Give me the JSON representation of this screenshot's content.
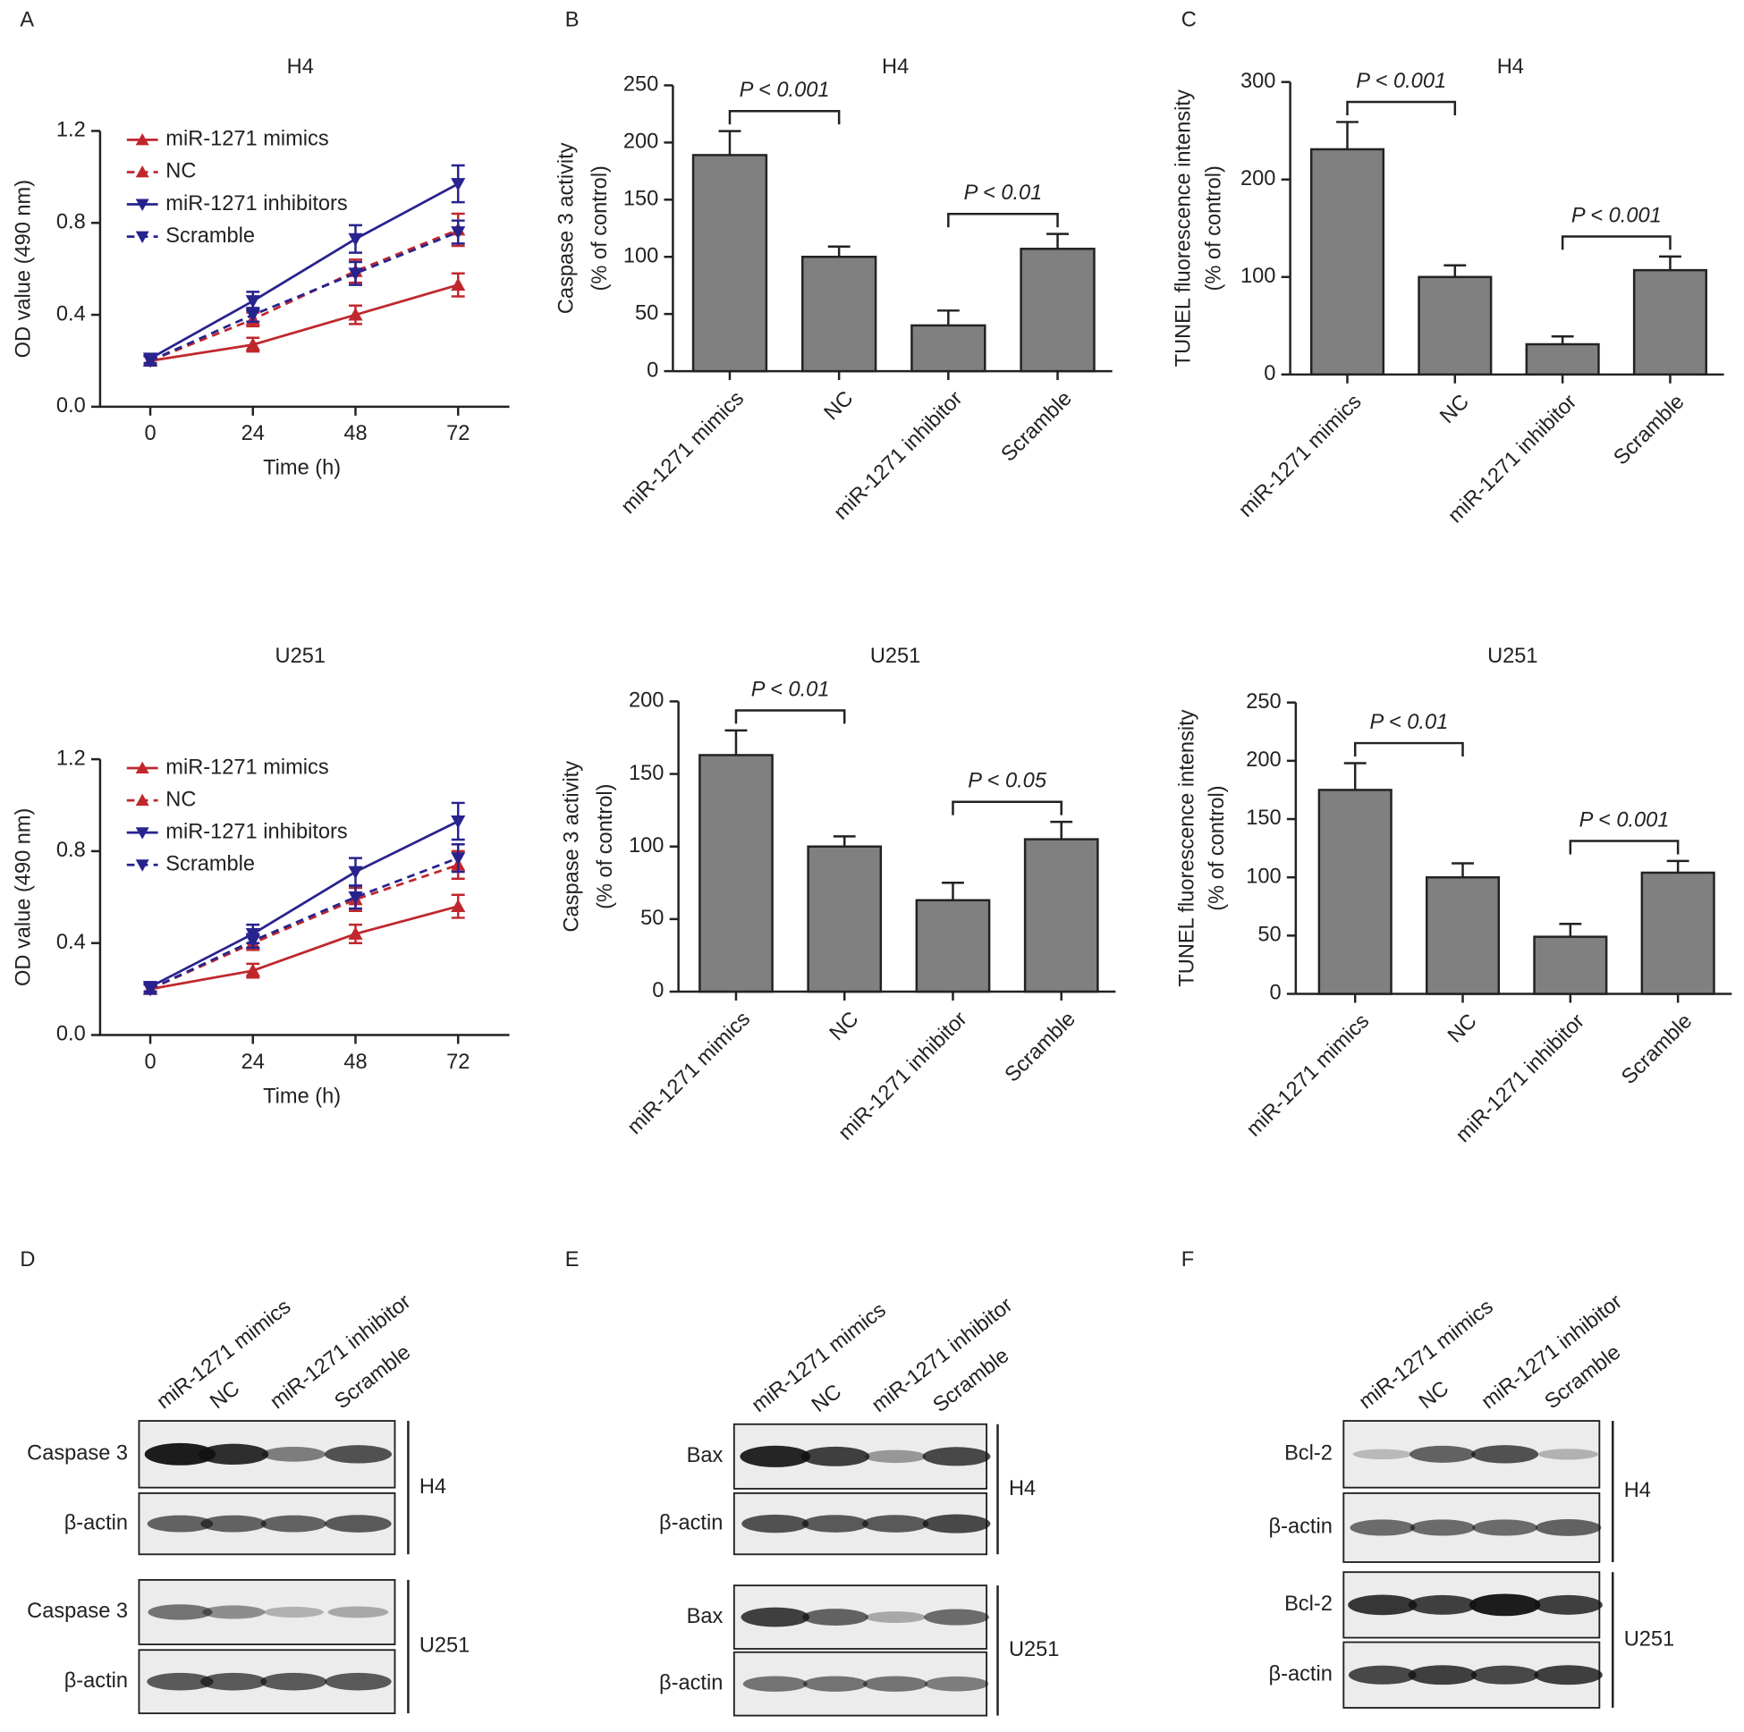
{
  "panel_labels": [
    "A",
    "B",
    "C",
    "D",
    "E",
    "F"
  ],
  "chart_data": [
    {
      "type": "line",
      "title": "H4",
      "xlabel": "Time (h)",
      "ylabel": [
        "OD value (490 nm)"
      ],
      "x": [
        0,
        24,
        48,
        72
      ],
      "xlim": [
        -12,
        84
      ],
      "xticks": [
        0,
        24,
        48,
        72
      ],
      "ylim": [
        0,
        1.2
      ],
      "yticks": [
        {
          "value": 0,
          "label": "0.0"
        },
        0.4,
        0.8,
        1.2
      ],
      "legend": "top-left",
      "series": [
        {
          "name": "miR-1271 mimics",
          "color": "#c0272d",
          "linestyle": "solid",
          "marker": "triangle-up",
          "values": [
            0.2,
            0.27,
            0.4,
            0.53
          ],
          "errors": [
            0.02,
            0.03,
            0.04,
            0.05
          ]
        },
        {
          "name": "NC",
          "color": "#c0272d",
          "linestyle": "dashed",
          "marker": "triangle-up",
          "values": [
            0.2,
            0.38,
            0.59,
            0.77
          ],
          "errors": [
            0.02,
            0.03,
            0.05,
            0.07
          ]
        },
        {
          "name": "miR-1271 inhibitors",
          "color": "#27238e",
          "linestyle": "solid",
          "marker": "triangle-down",
          "values": [
            0.21,
            0.46,
            0.73,
            0.97
          ],
          "errors": [
            0.02,
            0.04,
            0.06,
            0.08
          ]
        },
        {
          "name": "Scramble",
          "color": "#27238e",
          "linestyle": "dashed",
          "marker": "triangle-down",
          "values": [
            0.2,
            0.4,
            0.58,
            0.76
          ],
          "errors": [
            0.02,
            0.03,
            0.05,
            0.05
          ]
        }
      ]
    },
    {
      "type": "bar",
      "title": "H4",
      "ylabel": [
        "Caspase 3 activity",
        "(% of control)"
      ],
      "categories": [
        "miR-1271 mimics",
        "NC",
        "miR-1271 inhibitor",
        "Scramble"
      ],
      "values": [
        189,
        100,
        40,
        107
      ],
      "errors": [
        21,
        9,
        13,
        13
      ],
      "color": "#808080",
      "ylim": [
        0,
        250
      ],
      "yticks": [
        0,
        50,
        100,
        150,
        200,
        250
      ],
      "annotations": [
        "P < 0.001",
        "P < 0.01"
      ]
    },
    {
      "type": "bar",
      "title": "H4",
      "ylabel": [
        "TUNEL fluorescence intensity",
        "(% of control)"
      ],
      "categories": [
        "miR-1271 mimics",
        "NC",
        "miR-1271 inhibitor",
        "Scramble"
      ],
      "values": [
        231,
        100,
        31,
        107
      ],
      "errors": [
        28,
        12,
        8,
        14
      ],
      "color": "#808080",
      "ylim": [
        0,
        300
      ],
      "yticks": [
        0,
        100,
        200,
        300
      ],
      "annotations": [
        "P < 0.001",
        "P < 0.001"
      ]
    },
    {
      "type": "line",
      "title": "U251",
      "xlabel": "Time (h)",
      "ylabel": [
        "OD value (490 nm)"
      ],
      "x": [
        0,
        24,
        48,
        72
      ],
      "xlim": [
        -12,
        84
      ],
      "xticks": [
        0,
        24,
        48,
        72
      ],
      "ylim": [
        0,
        1.2
      ],
      "yticks": [
        {
          "value": 0,
          "label": "0.0"
        },
        0.4,
        0.8,
        1.2
      ],
      "legend": "top-left",
      "series": [
        {
          "name": "miR-1271 mimics",
          "color": "#c0272d",
          "linestyle": "solid",
          "marker": "triangle-up",
          "values": [
            0.2,
            0.28,
            0.44,
            0.56
          ],
          "errors": [
            0.02,
            0.03,
            0.04,
            0.05
          ]
        },
        {
          "name": "NC",
          "color": "#c0272d",
          "linestyle": "dashed",
          "marker": "triangle-up",
          "values": [
            0.2,
            0.4,
            0.59,
            0.74
          ],
          "errors": [
            0.02,
            0.03,
            0.05,
            0.06
          ]
        },
        {
          "name": "miR-1271 inhibitors",
          "color": "#27238e",
          "linestyle": "solid",
          "marker": "triangle-down",
          "values": [
            0.21,
            0.44,
            0.71,
            0.93
          ],
          "errors": [
            0.02,
            0.04,
            0.06,
            0.08
          ]
        },
        {
          "name": "Scramble",
          "color": "#27238e",
          "linestyle": "dashed",
          "marker": "triangle-down",
          "values": [
            0.2,
            0.41,
            0.6,
            0.77
          ],
          "errors": [
            0.02,
            0.03,
            0.05,
            0.06
          ]
        }
      ]
    },
    {
      "type": "bar",
      "title": "U251",
      "ylabel": [
        "Caspase 3 activity",
        "(% of control)"
      ],
      "categories": [
        "miR-1271 mimics",
        "NC",
        "miR-1271 inhibitor",
        "Scramble"
      ],
      "values": [
        163,
        100,
        63,
        105
      ],
      "errors": [
        17,
        7,
        12,
        12
      ],
      "color": "#808080",
      "ylim": [
        0,
        200
      ],
      "yticks": [
        0,
        50,
        100,
        150,
        200
      ],
      "annotations": [
        "P < 0.01",
        "P < 0.05"
      ]
    },
    {
      "type": "bar",
      "title": "U251",
      "ylabel": [
        "TUNEL fluorescence intensity",
        "(% of control)"
      ],
      "categories": [
        "miR-1271 mimics",
        "NC",
        "miR-1271 inhibitor",
        "Scramble"
      ],
      "values": [
        175,
        100,
        49,
        104
      ],
      "errors": [
        23,
        12,
        11,
        10
      ],
      "color": "#808080",
      "ylim": [
        0,
        250
      ],
      "yticks": [
        0,
        50,
        100,
        150,
        200,
        250
      ],
      "annotations": [
        "P < 0.01",
        "P < 0.001"
      ]
    }
  ],
  "blots": [
    {
      "lanes": [
        "miR-1271 mimics",
        "NC",
        "miR-1271 inhibitor",
        "Scramble"
      ],
      "rows": [
        "Caspase 3",
        "β-actin",
        "Caspase 3",
        "β-actin"
      ],
      "groups": [
        "H4",
        "U251"
      ]
    },
    {
      "lanes": [
        "miR-1271 mimics",
        "NC",
        "miR-1271 inhibitor",
        "Scramble"
      ],
      "rows": [
        "Bax",
        "β-actin",
        "Bax",
        "β-actin"
      ],
      "groups": [
        "H4",
        "U251"
      ]
    },
    {
      "lanes": [
        "miR-1271 mimics",
        "NC",
        "miR-1271 inhibitor",
        "Scramble"
      ],
      "rows": [
        "Bcl-2",
        "β-actin",
        "Bcl-2",
        "β-actin"
      ],
      "groups": [
        "H4",
        "U251"
      ]
    }
  ]
}
